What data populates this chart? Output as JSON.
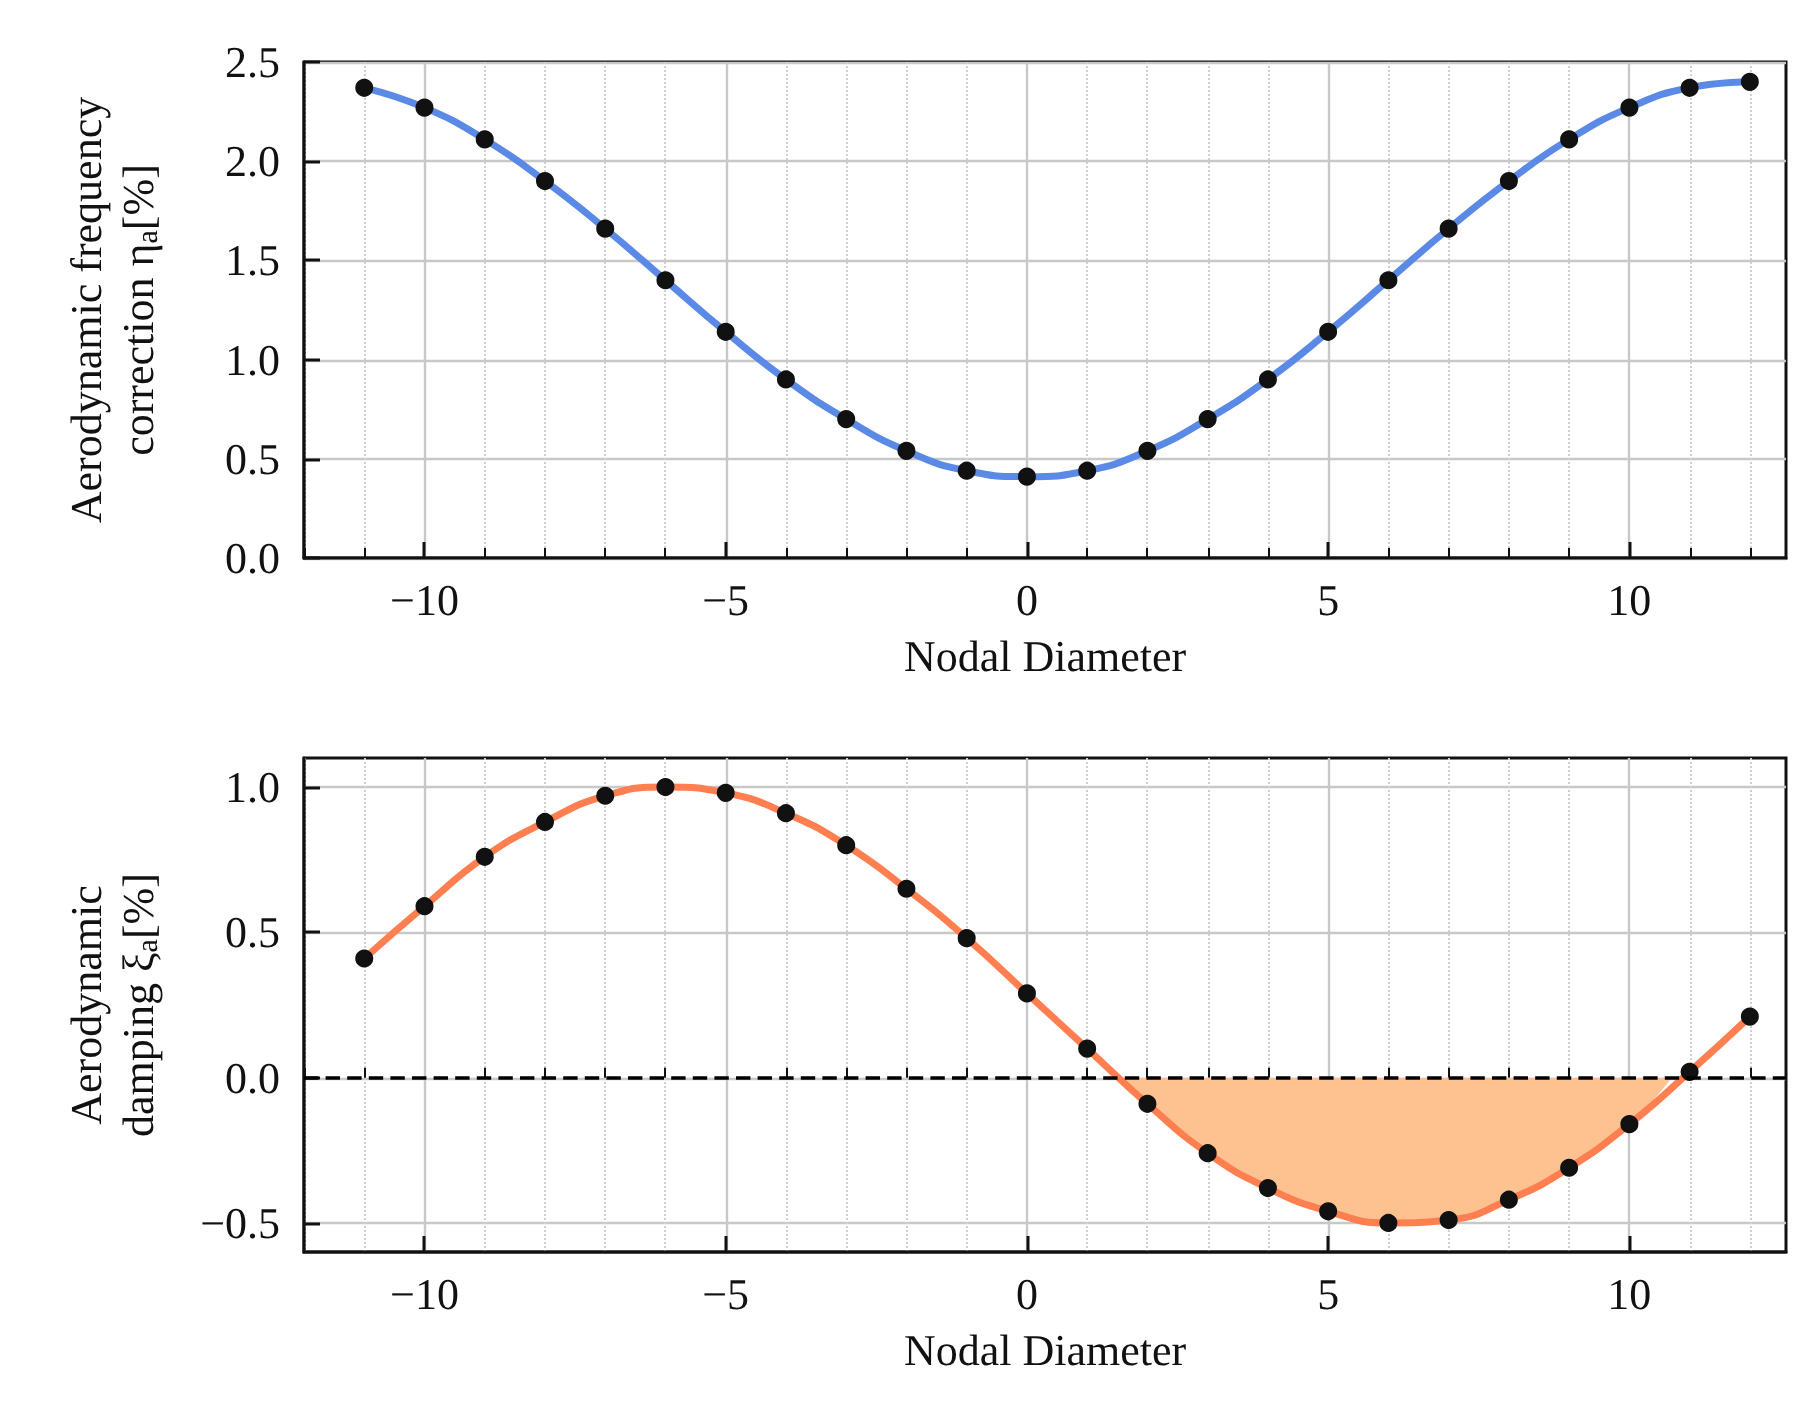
{
  "chart_data": [
    {
      "type": "line",
      "xlabel": "Nodal Diameter",
      "ylabel": "Aerodynamic frequency\ncorrection η$_{a}$[%]",
      "x": [
        -11,
        -10,
        -9,
        -8,
        -7,
        -6,
        -5,
        -4,
        -3,
        -2,
        -1,
        0,
        1,
        2,
        3,
        4,
        5,
        6,
        7,
        8,
        9,
        10,
        11,
        12
      ],
      "series": [
        {
          "color": "#5b8ae6",
          "values": [
            2.37,
            2.27,
            2.11,
            1.9,
            1.66,
            1.4,
            1.14,
            0.9,
            0.7,
            0.54,
            0.44,
            0.41,
            0.44,
            0.54,
            0.7,
            0.9,
            1.14,
            1.4,
            1.66,
            1.9,
            2.11,
            2.27,
            2.37,
            2.4
          ]
        }
      ],
      "marker": "circle",
      "grid": true,
      "xlim": [
        -12,
        12.6
      ],
      "ylim": [
        0,
        2.5
      ],
      "xticks": [
        -10,
        -5,
        0,
        5,
        10
      ],
      "yticks": [
        {
          "value": 0,
          "label": "0.0"
        },
        0.5,
        {
          "value": 1,
          "label": "1.0"
        },
        1.5,
        {
          "value": 2,
          "label": "2.0"
        },
        2.5
      ]
    },
    {
      "type": "line",
      "xlabel": "Nodal Diameter",
      "ylabel": "Aerodynamic\ndamping ξ$_{a}$[%]",
      "x": [
        -11,
        -10,
        -9,
        -8,
        -7,
        -6,
        -5,
        -4,
        -3,
        -2,
        -1,
        0,
        1,
        2,
        3,
        4,
        5,
        6,
        7,
        8,
        9,
        10,
        11,
        12
      ],
      "series": [
        {
          "type": "area",
          "color": "#fdc290",
          "x": [
            1.5,
            2,
            3,
            4,
            5,
            6,
            7,
            8,
            9,
            10,
            10.7
          ],
          "values": [
            0,
            -0.09,
            -0.26,
            -0.38,
            -0.46,
            -0.5,
            -0.49,
            -0.42,
            -0.31,
            -0.16,
            0
          ]
        },
        {
          "color": "#ff7f50",
          "values": [
            0.41,
            0.59,
            0.76,
            0.88,
            0.97,
            1.0,
            0.98,
            0.91,
            0.8,
            0.65,
            0.48,
            0.29,
            0.1,
            -0.09,
            -0.26,
            -0.38,
            -0.46,
            -0.5,
            -0.49,
            -0.42,
            -0.31,
            -0.16,
            0.02,
            0.21
          ]
        }
      ],
      "ref_lines": [
        {
          "axis": "y",
          "value": 0,
          "color": "#000000",
          "line_style": "dashed"
        }
      ],
      "marker": "circle",
      "grid": true,
      "xlim": [
        -12,
        12.6
      ],
      "ylim": [
        -0.6,
        1.1
      ],
      "xticks": [
        -10,
        -5,
        0,
        5,
        10
      ],
      "yticks": [
        {
          "value": -0.5,
          "label": "−0.5"
        },
        {
          "value": 0,
          "label": "0.0"
        },
        0.5,
        {
          "value": 1,
          "label": "1.0"
        }
      ]
    }
  ]
}
